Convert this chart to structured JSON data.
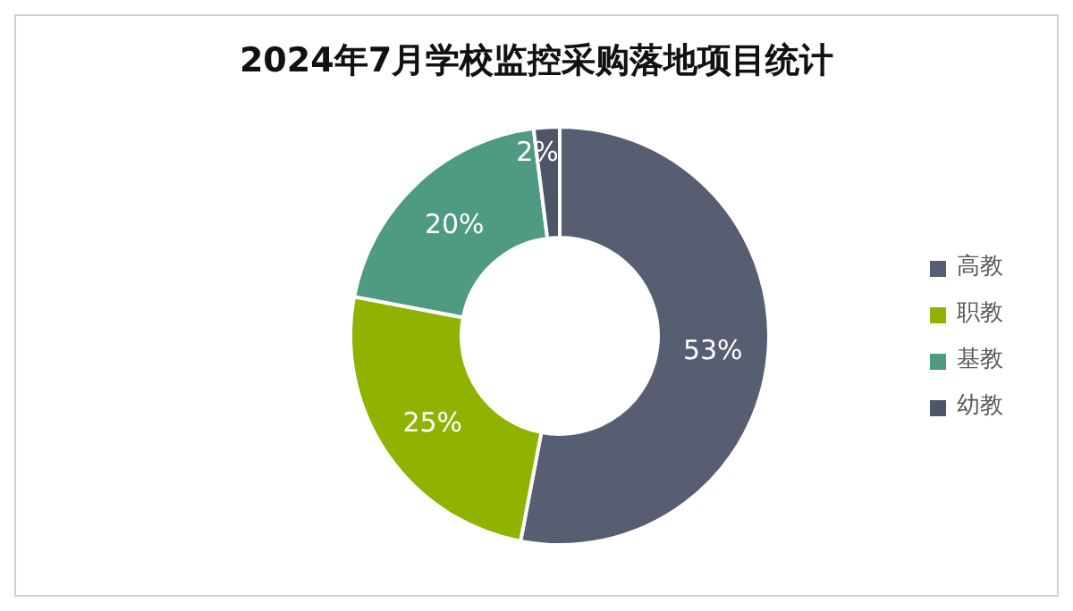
{
  "chart_data": {
    "type": "donut",
    "title": "2024年7月学校监控采购落地项目统计",
    "categories": [
      "高教",
      "职教",
      "基教",
      "幼教"
    ],
    "values": [
      53,
      25,
      20,
      2
    ],
    "colors": [
      "#575e71",
      "#8fb300",
      "#4f9a82",
      "#4d5566"
    ],
    "value_labels": [
      "53%",
      "25%",
      "20%",
      "2%"
    ],
    "legend": "right"
  }
}
